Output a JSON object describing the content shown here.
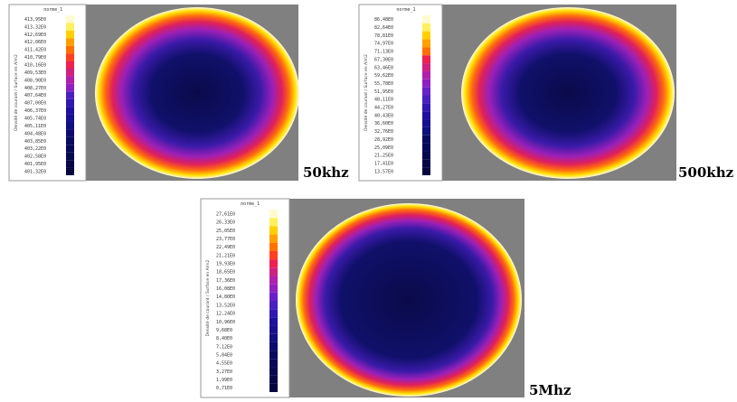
{
  "panels": [
    {
      "legend_title": "norme_1",
      "axis_label": "Densité de courant / Surface en A/m2",
      "frequency": "50khz",
      "ticks": [
        "413,95E0",
        "413,32E0",
        "412,69E0",
        "412,06E0",
        "411,42E0",
        "410,79E0",
        "410,16E0",
        "409,53E0",
        "408,90E0",
        "408,27E0",
        "407,64E0",
        "407,00E0",
        "406,37E0",
        "405,74E0",
        "405,11E0",
        "404,48E0",
        "403,85E0",
        "403,22E0",
        "402,58E0",
        "401,95E0",
        "401,32E0"
      ]
    },
    {
      "legend_title": "norme_1",
      "axis_label": "Densité de courant / Surface en A/m2",
      "frequency": "500khz",
      "ticks": [
        "86,48E0",
        "82,64E0",
        "78,81E0",
        "74,97E0",
        "71,13E0",
        "67,30E0",
        "63,46E0",
        "59,62E0",
        "55,78E0",
        "51,95E0",
        "48,11E0",
        "44,27E0",
        "40,43E0",
        "36,60E0",
        "32,76E0",
        "28,92E0",
        "25,09E0",
        "21,25E0",
        "17,41E0",
        "13,57E0"
      ]
    },
    {
      "legend_title": "norme_1",
      "axis_label": "Densité de courant / Surface en A/m2",
      "frequency": "5Mhz",
      "ticks": [
        "27,61E0",
        "26,33E0",
        "25,05E0",
        "23,77E0",
        "22,49E0",
        "21,21E0",
        "19,93E0",
        "18,65E0",
        "17,36E0",
        "16,08E0",
        "14,80E0",
        "13,52E0",
        "12,24E0",
        "10,96E0",
        "9,68E0",
        "8,40E0",
        "7,12E0",
        "5,84E0",
        "4,55E0",
        "3,27E0",
        "1,99E0",
        "0,71E0"
      ]
    }
  ]
}
